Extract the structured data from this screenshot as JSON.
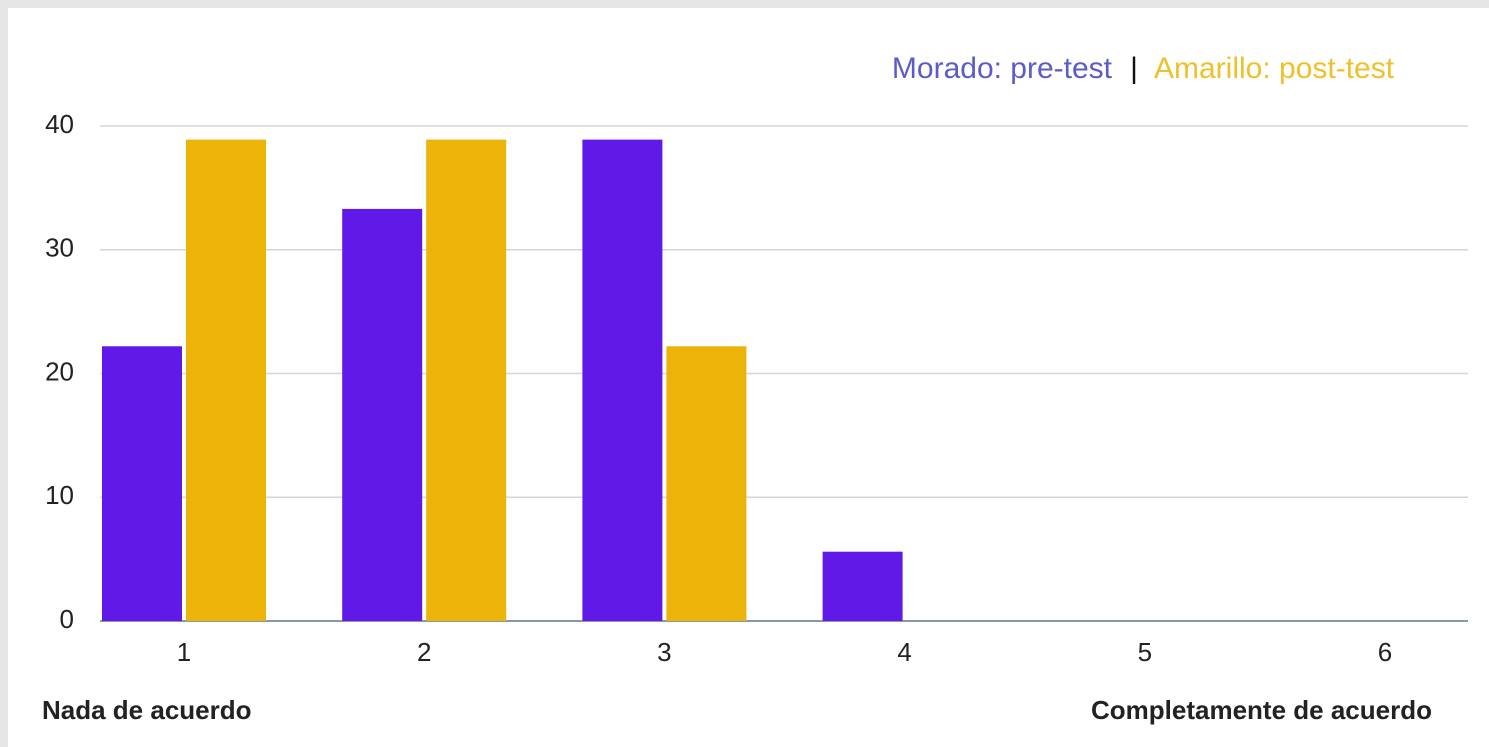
{
  "chart_data": {
    "type": "bar",
    "categories": [
      "1",
      "2",
      "3",
      "4",
      "5",
      "6"
    ],
    "series": [
      {
        "name": "Morado: pre-test",
        "color": "#6119e8",
        "legend_color": "#5b5bcc",
        "values": [
          22.2,
          33.3,
          38.9,
          5.6,
          0,
          0
        ]
      },
      {
        "name": "Amarillo: post-test",
        "color": "#ecb309",
        "legend_color": "#f0c02c",
        "values": [
          38.9,
          38.9,
          22.2,
          0,
          0,
          0
        ]
      }
    ],
    "legend_separator": "|",
    "ylim": [
      0,
      40
    ],
    "yticks": [
      0,
      10,
      20,
      30,
      40
    ],
    "grid": true,
    "xlabel_left": "Nada de acuerdo",
    "xlabel_right": "Completamente de acuerdo"
  }
}
